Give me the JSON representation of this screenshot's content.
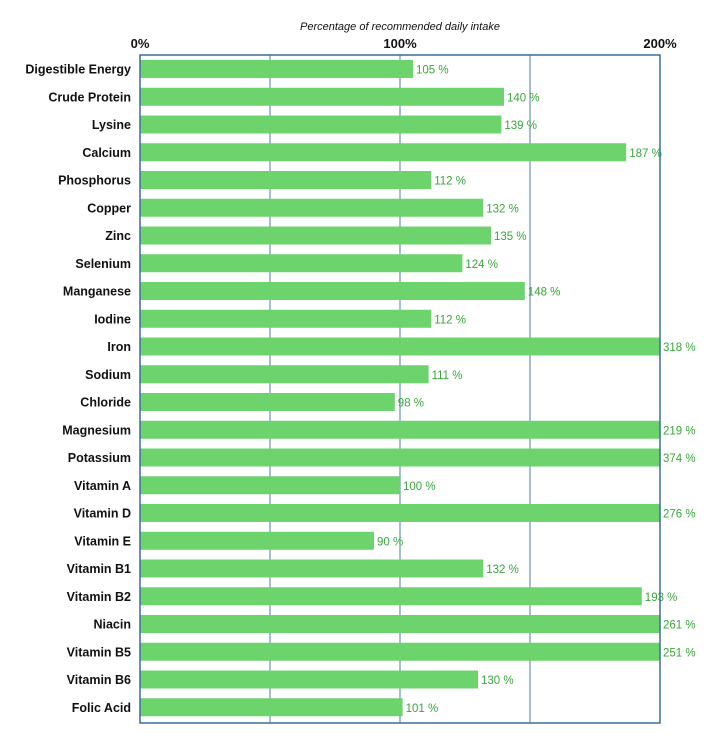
{
  "chart_data": {
    "type": "bar",
    "orientation": "horizontal",
    "xlabel": "Percentage of recommended daily intake",
    "xlim": [
      0,
      200
    ],
    "ticks": [
      {
        "value": 0,
        "label": "0%"
      },
      {
        "value": 100,
        "label": "100%"
      },
      {
        "value": 200,
        "label": "200%"
      }
    ],
    "gridlines": [
      50,
      100,
      150
    ],
    "axis_position": "top",
    "categories": [
      "Digestible Energy",
      "Crude Protein",
      "Lysine",
      "Calcium",
      "Phosphorus",
      "Copper",
      "Zinc",
      "Selenium",
      "Manganese",
      "Iodine",
      "Iron",
      "Sodium",
      "Chloride",
      "Magnesium",
      "Potassium",
      "Vitamin A",
      "Vitamin D",
      "Vitamin E",
      "Vitamin B1",
      "Vitamin B2",
      "Niacin",
      "Vitamin B5",
      "Vitamin B6",
      "Folic Acid"
    ],
    "values": [
      105,
      140,
      139,
      187,
      112,
      132,
      135,
      124,
      148,
      112,
      318,
      111,
      98,
      219,
      374,
      100,
      276,
      90,
      132,
      193,
      261,
      251,
      130,
      101
    ],
    "value_labels": [
      "105 %",
      "140 %",
      "139 %",
      "187 %",
      "112 %",
      "132 %",
      "135 %",
      "124 %",
      "148 %",
      "112 %",
      "318 %",
      "111 %",
      "98 %",
      "219 %",
      "374 %",
      "100 %",
      "276 %",
      "90 %",
      "132 %",
      "193 %",
      "261 %",
      "251 %",
      "130 %",
      "101 %"
    ],
    "bar_color": "#6dd46d",
    "label_color": "#3aa63a",
    "frame_color": "#3a6f9a",
    "grid_color": "#4a7fa8"
  }
}
